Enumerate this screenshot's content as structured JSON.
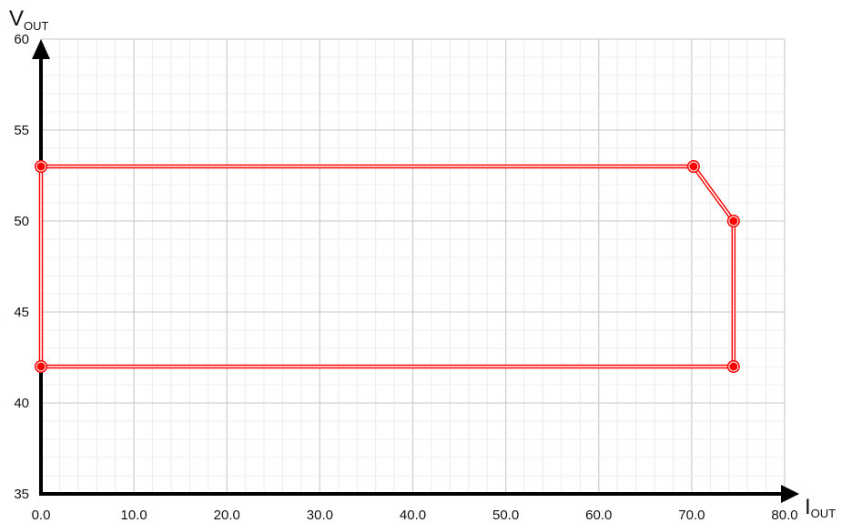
{
  "chart_data": {
    "type": "line",
    "xlabel": {
      "main": "I",
      "sub": "OUT"
    },
    "ylabel": {
      "main": "V",
      "sub": "OUT"
    },
    "xlim": [
      0,
      80
    ],
    "ylim": [
      35,
      60
    ],
    "xticks": [
      "0.0",
      "10.0",
      "20.0",
      "30.0",
      "40.0",
      "50.0",
      "60.0",
      "70.0",
      "80.0"
    ],
    "xtick_values": [
      0,
      10,
      20,
      30,
      40,
      50,
      60,
      70,
      80
    ],
    "yticks": [
      "35",
      "40",
      "45",
      "50",
      "55",
      "60"
    ],
    "ytick_values": [
      35,
      40,
      45,
      50,
      55,
      60
    ],
    "grid": true,
    "minor_grid": true,
    "series": [
      {
        "closed": true,
        "color": "#ff0000",
        "points": [
          {
            "x": 0,
            "y": 53
          },
          {
            "x": 70.2,
            "y": 53
          },
          {
            "x": 74.5,
            "y": 50
          },
          {
            "x": 74.5,
            "y": 42
          },
          {
            "x": 0,
            "y": 42
          }
        ]
      }
    ]
  }
}
